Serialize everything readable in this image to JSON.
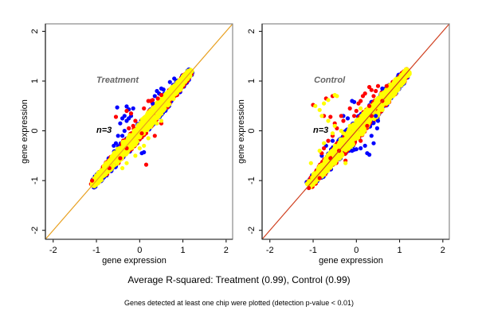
{
  "chart_data": [
    {
      "type": "scatter",
      "title": "Treatment",
      "annotation": "n=3",
      "xlabel": "gene expression",
      "ylabel": "gene expression",
      "xlim": [
        -2.18,
        2.15
      ],
      "ylim": [
        -2.18,
        2.15
      ],
      "xticks": [
        "-2",
        "-1",
        "0",
        "1",
        "2"
      ],
      "yticks": [
        "-2",
        "-1",
        "0",
        "1",
        "2"
      ],
      "reference_line": {
        "slope": 1,
        "intercept": 0,
        "color": "#e8a020"
      },
      "series_colors": {
        "blue": "#0000ff",
        "red": "#ff0000",
        "yellow": "#ffff00"
      },
      "main_cloud": {
        "from": -1.1,
        "to": 1.2,
        "width": 0.12
      },
      "series": [
        {
          "name": "blue",
          "color": "#0000ff",
          "points": [
            [
              -0.52,
              0.47
            ],
            [
              -0.3,
              0.49
            ],
            [
              -0.25,
              0.43
            ],
            [
              -0.15,
              0.45
            ],
            [
              -0.35,
              0.3
            ],
            [
              -0.4,
              0.25
            ],
            [
              -0.3,
              0.2
            ],
            [
              -0.45,
              0.15
            ],
            [
              -0.35,
              0.0
            ],
            [
              -0.5,
              -0.1
            ],
            [
              -0.6,
              -0.3
            ],
            [
              -0.55,
              -0.25
            ],
            [
              -0.4,
              -0.1
            ],
            [
              0.05,
              -0.45
            ],
            [
              0.1,
              -0.43
            ],
            [
              0.3,
              0.55
            ],
            [
              0.4,
              0.8
            ],
            [
              0.5,
              0.85
            ],
            [
              0.55,
              0.83
            ],
            [
              0.45,
              0.75
            ],
            [
              0.35,
              0.7
            ],
            [
              0.7,
              0.98
            ],
            [
              0.8,
              1.05
            ],
            [
              -0.2,
              0.3
            ],
            [
              -0.25,
              0.25
            ]
          ]
        },
        {
          "name": "red",
          "color": "#ff0000",
          "points": [
            [
              -0.55,
              0.28
            ],
            [
              -0.3,
              0.4
            ],
            [
              -0.2,
              0.35
            ],
            [
              -0.1,
              0.2
            ],
            [
              -0.25,
              0.05
            ],
            [
              -0.15,
              0.1
            ],
            [
              0.1,
              0.45
            ],
            [
              0.2,
              0.6
            ],
            [
              0.25,
              0.6
            ],
            [
              0.3,
              0.62
            ],
            [
              0.42,
              0.65
            ],
            [
              0.5,
              0.72
            ],
            [
              0.15,
              -0.68
            ],
            [
              0.5,
              0.15
            ],
            [
              0.35,
              -0.1
            ],
            [
              -0.45,
              -0.55
            ],
            [
              -0.7,
              -0.75
            ],
            [
              -0.6,
              -0.7
            ],
            [
              -1.1,
              -1.0
            ],
            [
              0.05,
              -0.05
            ],
            [
              -0.3,
              -0.35
            ]
          ]
        },
        {
          "name": "yellow",
          "color": "#ffff00",
          "points": [
            [
              -0.4,
              -0.75
            ],
            [
              -0.3,
              -0.65
            ],
            [
              -0.1,
              -0.5
            ],
            [
              0.1,
              -0.3
            ],
            [
              0.2,
              -0.15
            ],
            [
              0.5,
              0.2
            ],
            [
              0.4,
              0.15
            ],
            [
              -0.6,
              -0.7
            ],
            [
              0.0,
              -0.35
            ]
          ]
        }
      ]
    },
    {
      "type": "scatter",
      "title": "Control",
      "annotation": "n=3",
      "xlabel": "gene expression",
      "ylabel": "gene expression",
      "xlim": [
        -2.18,
        2.15
      ],
      "ylim": [
        -2.18,
        2.15
      ],
      "xticks": [
        "-2",
        "-1",
        "0",
        "1",
        "2"
      ],
      "yticks": [
        "-2",
        "-1",
        "0",
        "1",
        "2"
      ],
      "reference_line": {
        "slope": 1,
        "intercept": 0,
        "color": "#d04020"
      },
      "series_colors": {
        "blue": "#0000ff",
        "red": "#ff0000",
        "yellow": "#ffff00"
      },
      "main_cloud": {
        "from": -1.1,
        "to": 1.2,
        "width": 0.14
      },
      "series": [
        {
          "name": "blue",
          "color": "#0000ff",
          "points": [
            [
              -0.1,
              0.6
            ],
            [
              -0.05,
              0.58
            ],
            [
              0.45,
              0.3
            ],
            [
              0.5,
              0.2
            ],
            [
              0.48,
              0.05
            ],
            [
              0.35,
              -0.1
            ],
            [
              0.2,
              -0.3
            ],
            [
              0.1,
              -0.35
            ],
            [
              0.0,
              -0.37
            ],
            [
              -0.1,
              -0.4
            ],
            [
              -0.05,
              -0.38
            ],
            [
              0.25,
              -0.45
            ],
            [
              0.3,
              -0.48
            ],
            [
              0.4,
              -0.25
            ],
            [
              -0.8,
              -0.5
            ],
            [
              -0.7,
              -0.3
            ],
            [
              -0.55,
              -0.2
            ],
            [
              0.6,
              0.85
            ],
            [
              -0.2,
              0.25
            ],
            [
              -0.3,
              0.3
            ]
          ]
        },
        {
          "name": "red",
          "color": "#ff0000",
          "points": [
            [
              -1.0,
              0.52
            ],
            [
              -0.7,
              0.65
            ],
            [
              -0.55,
              0.7
            ],
            [
              -0.75,
              0.3
            ],
            [
              -0.6,
              0.28
            ],
            [
              -0.5,
              0.15
            ],
            [
              -0.35,
              0.3
            ],
            [
              -0.3,
              0.2
            ],
            [
              -0.45,
              0.05
            ],
            [
              -0.55,
              -0.1
            ],
            [
              -0.65,
              -0.2
            ],
            [
              -0.75,
              -0.35
            ],
            [
              -0.8,
              -0.45
            ],
            [
              -0.6,
              -0.55
            ],
            [
              -0.4,
              -0.4
            ],
            [
              -0.25,
              -0.6
            ],
            [
              0.0,
              0.4
            ],
            [
              0.05,
              0.55
            ],
            [
              0.1,
              0.6
            ],
            [
              0.15,
              0.7
            ],
            [
              0.2,
              0.75
            ],
            [
              0.3,
              0.88
            ],
            [
              0.35,
              0.82
            ],
            [
              0.5,
              0.9
            ],
            [
              0.45,
              0.8
            ],
            [
              0.4,
              0.7
            ],
            [
              0.3,
              0.5
            ],
            [
              0.35,
              0.3
            ],
            [
              0.25,
              0.1
            ],
            [
              0.1,
              -0.2
            ],
            [
              -0.15,
              0.45
            ],
            [
              -0.05,
              0.3
            ],
            [
              0.6,
              0.6
            ],
            [
              0.7,
              0.9
            ],
            [
              -0.85,
              -0.95
            ],
            [
              -1.1,
              -1.15
            ]
          ]
        },
        {
          "name": "yellow",
          "color": "#ffff00",
          "points": [
            [
              -0.95,
              0.5
            ],
            [
              -0.85,
              0.42
            ],
            [
              -0.75,
              0.55
            ],
            [
              -0.65,
              0.62
            ],
            [
              -0.5,
              0.72
            ],
            [
              -0.45,
              0.7
            ],
            [
              -0.8,
              0.3
            ],
            [
              -0.65,
              0.2
            ],
            [
              -0.5,
              0.1
            ],
            [
              -0.35,
              0.0
            ],
            [
              -0.55,
              -0.05
            ],
            [
              -0.75,
              -0.25
            ],
            [
              -0.85,
              -0.4
            ],
            [
              -1.05,
              -0.65
            ],
            [
              -0.25,
              -0.65
            ],
            [
              -0.45,
              -0.5
            ],
            [
              -0.15,
              0.1
            ],
            [
              -0.3,
              -0.05
            ],
            [
              0.1,
              0.45
            ],
            [
              -0.5,
              -0.3
            ]
          ]
        }
      ]
    }
  ],
  "captions": {
    "main": "Average R-squared: Treatment (0.99), Control (0.99)",
    "sub": "Genes detected at least one chip were plotted (detection p-value < 0.01)"
  }
}
